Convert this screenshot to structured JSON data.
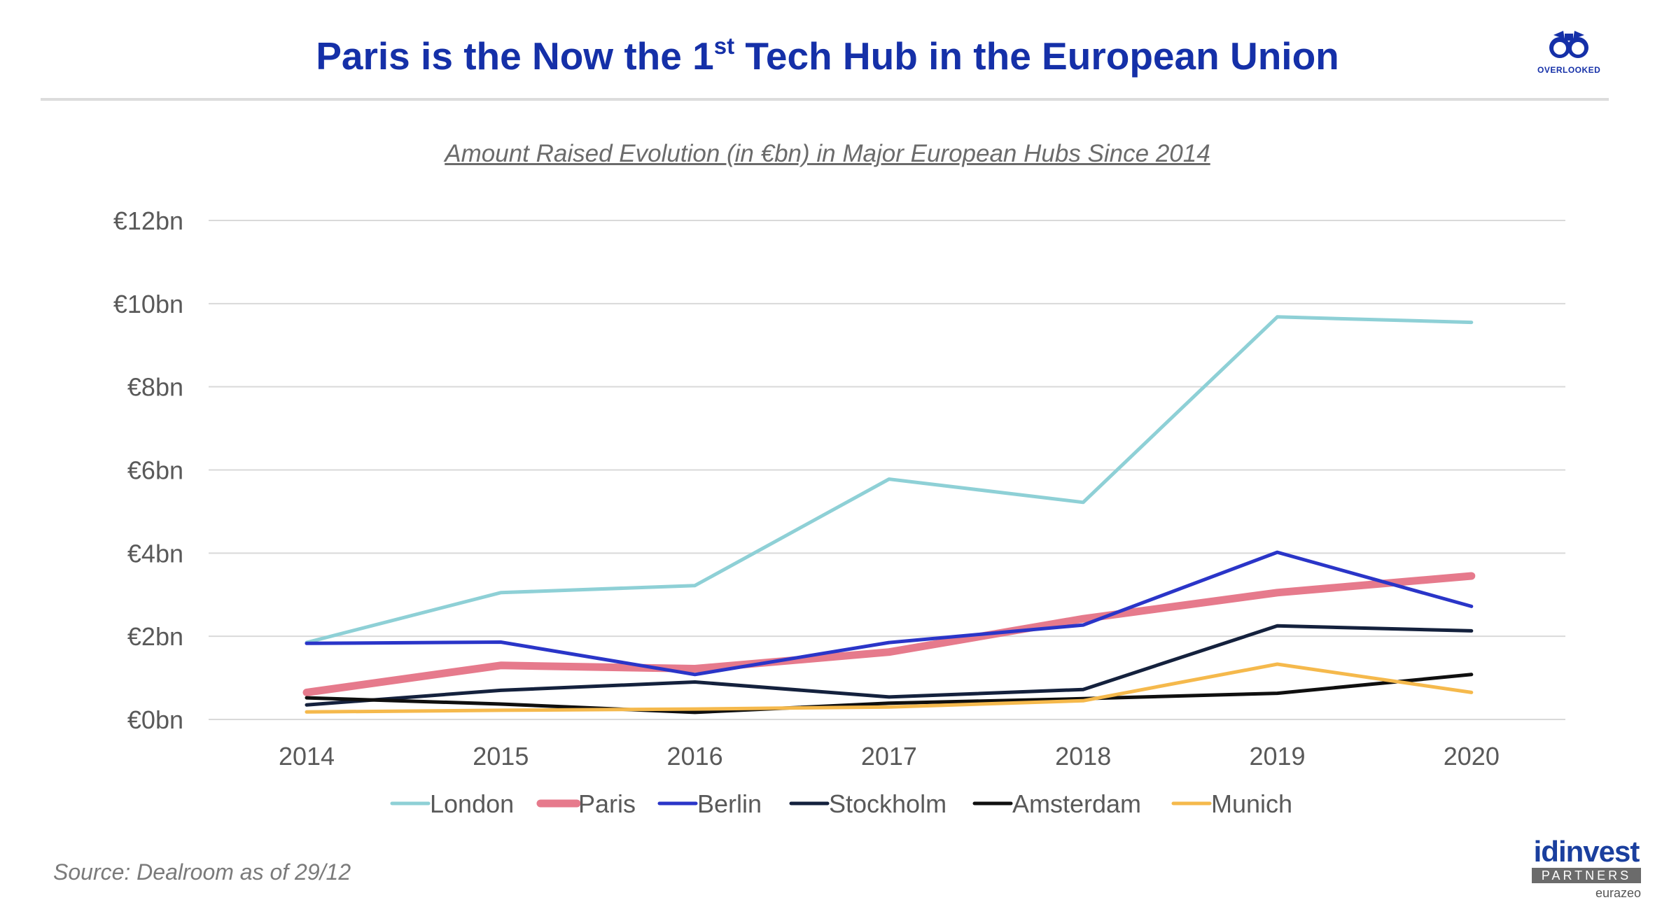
{
  "header": {
    "title_pre": "Paris is the Now the 1",
    "title_sup": "st",
    "title_post": " Tech Hub in the European Union",
    "logo_text": "OVERLOOKED"
  },
  "footer": {
    "source": "Source: Dealroom as of 29/12",
    "brand_name": "idinvest",
    "brand_tag": "PARTNERS",
    "brand_parent": "eurazeo"
  },
  "colors": {
    "title": "#1530a8",
    "grid": "#d9d9d9",
    "axis_text": "#595959"
  },
  "chart_data": {
    "type": "line",
    "title": "Amount Raised Evolution (in €bn) in Major European Hubs Since 2014",
    "xlabel": "",
    "ylabel": "",
    "ylim": [
      0,
      12
    ],
    "grid": true,
    "legend_position": "bottom",
    "categories": [
      "2014",
      "2015",
      "2016",
      "2017",
      "2018",
      "2019",
      "2020"
    ],
    "yticks": [
      {
        "value": 0,
        "label": "€0bn"
      },
      {
        "value": 2,
        "label": "€2bn"
      },
      {
        "value": 4,
        "label": "€4bn"
      },
      {
        "value": 6,
        "label": "€6bn"
      },
      {
        "value": 8,
        "label": "€8bn"
      },
      {
        "value": 10,
        "label": "€10bn"
      },
      {
        "value": 12,
        "label": "€12bn"
      }
    ],
    "series": [
      {
        "name": "London",
        "color": "#8ed0d6",
        "weight": "normal",
        "values": [
          1.85,
          3.05,
          3.22,
          5.78,
          5.22,
          9.68,
          9.55
        ]
      },
      {
        "name": "Paris",
        "color": "#e67a8c",
        "weight": "thick",
        "values": [
          0.65,
          1.3,
          1.22,
          1.62,
          2.42,
          3.05,
          3.45
        ]
      },
      {
        "name": "Berlin",
        "color": "#2a35c8",
        "weight": "normal",
        "values": [
          1.83,
          1.86,
          1.08,
          1.85,
          2.27,
          4.02,
          2.72
        ]
      },
      {
        "name": "Stockholm",
        "color": "#14213d",
        "weight": "normal",
        "values": [
          0.35,
          0.7,
          0.9,
          0.54,
          0.72,
          2.25,
          2.13
        ]
      },
      {
        "name": "Amsterdam",
        "color": "#0f0f0f",
        "weight": "normal",
        "values": [
          0.52,
          0.37,
          0.17,
          0.39,
          0.5,
          0.63,
          1.08
        ]
      },
      {
        "name": "Munich",
        "color": "#f5b94c",
        "weight": "normal",
        "values": [
          0.18,
          0.22,
          0.25,
          0.3,
          0.45,
          1.33,
          0.65
        ]
      }
    ]
  }
}
